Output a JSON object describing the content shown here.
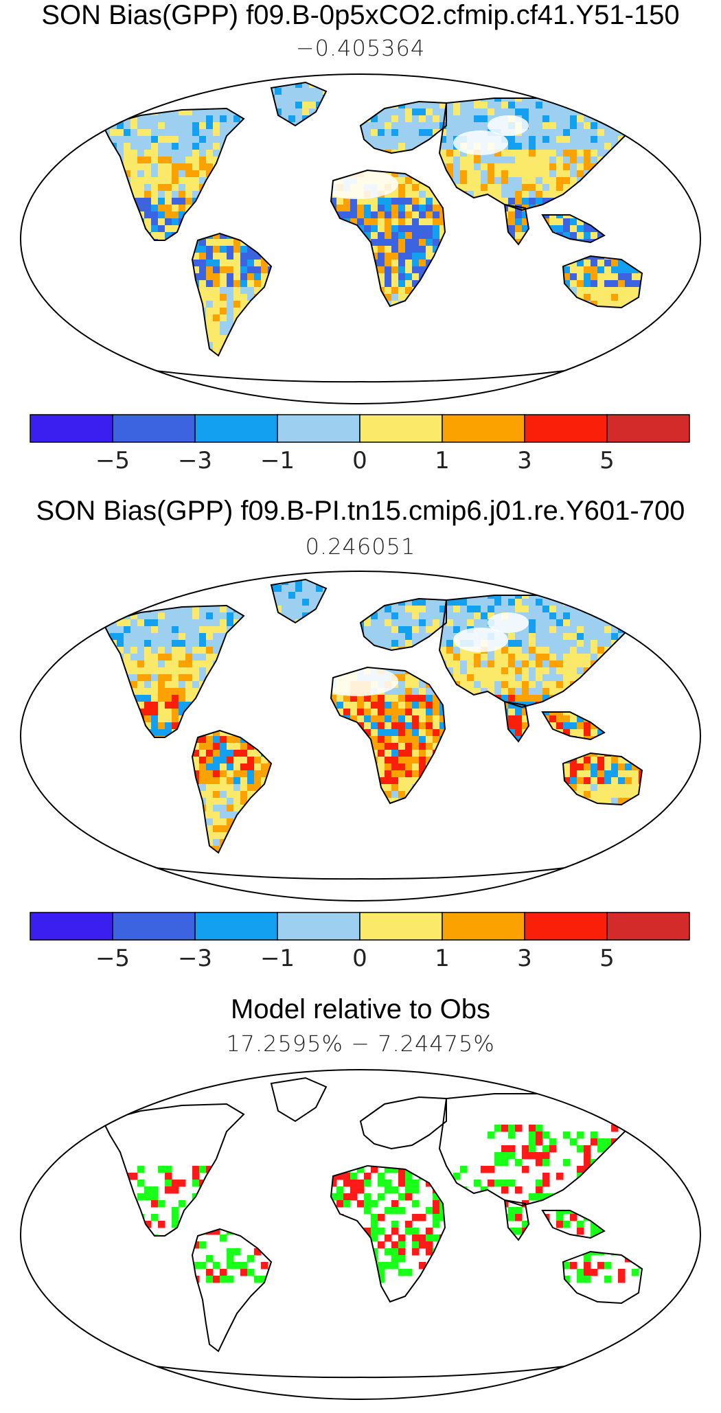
{
  "panels": [
    {
      "title": "SON Bias(GPP) f09.B-0p5xCO2.cfmip.cf41.Y51-150",
      "subtitle": "−0.405364"
    },
    {
      "title": "SON Bias(GPP) f09.B-PI.tn15.cmip6.j01.re.Y601-700",
      "subtitle": "0.246051"
    },
    {
      "title": "Model relative to Obs",
      "subtitle": "17.2595% − 7.24475%"
    }
  ],
  "colorbar": {
    "labels": [
      "−5",
      "−3",
      "−1",
      "0",
      "1",
      "3",
      "5"
    ],
    "colors": [
      "#3a1ff0",
      "#3c63e0",
      "#14a0f0",
      "#9dd0f0",
      "#fbe96a",
      "#fca200",
      "#fa1f08",
      "#d32a2a"
    ]
  },
  "relative_colors": {
    "better": "#19ff19",
    "worse": "#ff1a1a"
  }
}
